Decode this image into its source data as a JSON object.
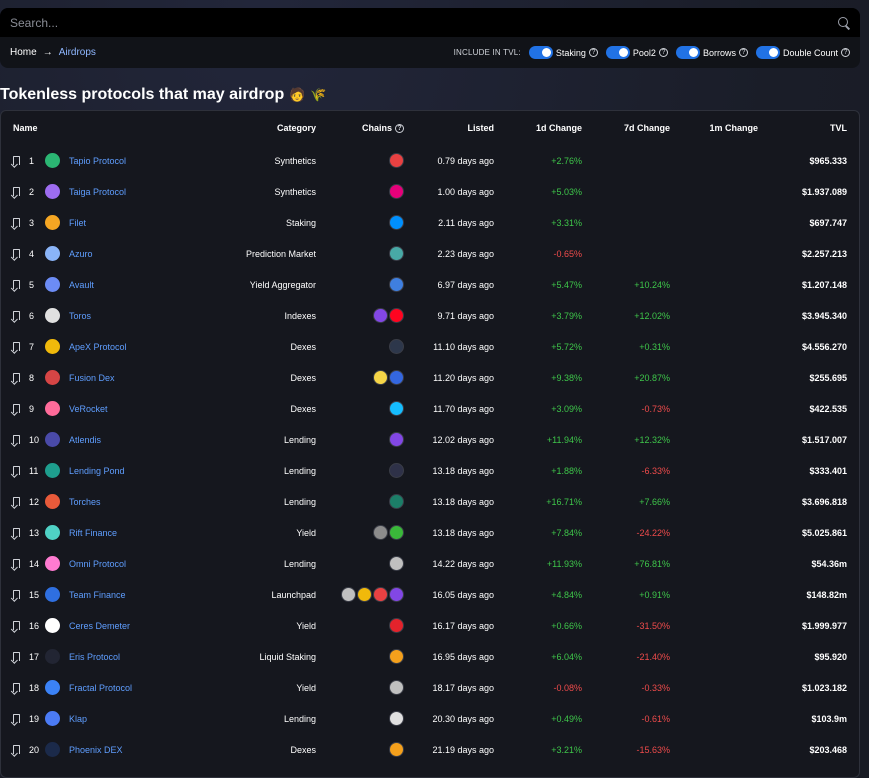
{
  "search": {
    "placeholder": "Search..."
  },
  "breadcrumb": {
    "home": "Home",
    "separator": "→",
    "current": "Airdrops"
  },
  "tvl_options": {
    "label": "INCLUDE IN TVL:",
    "toggles": [
      {
        "label": "Staking",
        "on": true
      },
      {
        "label": "Pool2",
        "on": true
      },
      {
        "label": "Borrows",
        "on": true
      },
      {
        "label": "Double Count",
        "on": true
      }
    ]
  },
  "page": {
    "title": "Tokenless protocols that may airdrop",
    "emoji1": "🧑",
    "emoji2": "🌾"
  },
  "table": {
    "headers": {
      "name": "Name",
      "category": "Category",
      "chains": "Chains",
      "listed": "Listed",
      "d1": "1d Change",
      "d7": "7d Change",
      "m1": "1m Change",
      "tvl": "TVL"
    },
    "rows": [
      {
        "rank": "1",
        "name": "Tapio Protocol",
        "logo": "#2bb673",
        "category": "Synthetics",
        "chains": [
          "#e84142"
        ],
        "listed": "0.79 days ago",
        "d1": "+2.76%",
        "d7": "",
        "m1": "",
        "tvl": "$965.333"
      },
      {
        "rank": "2",
        "name": "Taiga Protocol",
        "logo": "#9d6cf0",
        "category": "Synthetics",
        "chains": [
          "#e6007a"
        ],
        "listed": "1.00 days ago",
        "d1": "+5.03%",
        "d7": "",
        "m1": "",
        "tvl": "$1.937.089"
      },
      {
        "rank": "3",
        "name": "Filet",
        "logo": "#f5a623",
        "category": "Staking",
        "chains": [
          "#0090ff"
        ],
        "listed": "2.11 days ago",
        "d1": "+3.31%",
        "d7": "",
        "m1": "",
        "tvl": "$697.747"
      },
      {
        "rank": "4",
        "name": "Azuro",
        "logo": "#8ab4f8",
        "category": "Prediction Market",
        "chains": [
          "#48a9a6"
        ],
        "listed": "2.23 days ago",
        "d1": "-0.65%",
        "d7": "",
        "m1": "",
        "tvl": "$2.257.213"
      },
      {
        "rank": "5",
        "name": "Avault",
        "logo": "#6c8cf5",
        "category": "Yield Aggregator",
        "chains": [
          "#3f7fe0"
        ],
        "listed": "6.97 days ago",
        "d1": "+5.47%",
        "d7": "+10.24%",
        "m1": "",
        "tvl": "$1.207.148"
      },
      {
        "rank": "6",
        "name": "Toros",
        "logo": "#e0e0e0",
        "category": "Indexes",
        "chains": [
          "#8247e5",
          "#ff0420"
        ],
        "listed": "9.71 days ago",
        "d1": "+3.79%",
        "d7": "+12.02%",
        "m1": "",
        "tvl": "$3.945.340"
      },
      {
        "rank": "7",
        "name": "ApeX Protocol",
        "logo": "#f0b90b",
        "category": "Dexes",
        "chains": [
          "#2d374b"
        ],
        "listed": "11.10 days ago",
        "d1": "+5.72%",
        "d7": "+0.31%",
        "m1": "",
        "tvl": "$4.556.270"
      },
      {
        "rank": "8",
        "name": "Fusion Dex",
        "logo": "#d64545",
        "category": "Dexes",
        "chains": [
          "#f5d547",
          "#3467e0"
        ],
        "listed": "11.20 days ago",
        "d1": "+9.38%",
        "d7": "+20.87%",
        "m1": "",
        "tvl": "$255.695"
      },
      {
        "rank": "9",
        "name": "VeRocket",
        "logo": "#ff6b9a",
        "category": "Dexes",
        "chains": [
          "#15bdff"
        ],
        "listed": "11.70 days ago",
        "d1": "+3.09%",
        "d7": "-0.73%",
        "m1": "",
        "tvl": "$422.535"
      },
      {
        "rank": "10",
        "name": "Atlendis",
        "logo": "#4a4aa8",
        "category": "Lending",
        "chains": [
          "#8247e5"
        ],
        "listed": "12.02 days ago",
        "d1": "+11.94%",
        "d7": "+12.32%",
        "m1": "",
        "tvl": "$1.517.007"
      },
      {
        "rank": "11",
        "name": "Lending Pond",
        "logo": "#1e9e8e",
        "category": "Lending",
        "chains": [
          "#2e3148"
        ],
        "listed": "13.18 days ago",
        "d1": "+1.88%",
        "d7": "-6.33%",
        "m1": "",
        "tvl": "$333.401"
      },
      {
        "rank": "12",
        "name": "Torches",
        "logo": "#e85a3a",
        "category": "Lending",
        "chains": [
          "#1c7e68"
        ],
        "listed": "13.18 days ago",
        "d1": "+16.71%",
        "d7": "+7.66%",
        "m1": "",
        "tvl": "$3.696.818"
      },
      {
        "rank": "13",
        "name": "Rift Finance",
        "logo": "#4fd1c5",
        "category": "Yield",
        "chains": [
          "#8c8c8c",
          "#3ab83a"
        ],
        "listed": "13.18 days ago",
        "d1": "+7.84%",
        "d7": "-24.22%",
        "m1": "",
        "tvl": "$5.025.861"
      },
      {
        "rank": "14",
        "name": "Omni Protocol",
        "logo": "#ff7bd1",
        "category": "Lending",
        "chains": [
          "#c0c0c0"
        ],
        "listed": "14.22 days ago",
        "d1": "+11.93%",
        "d7": "+76.81%",
        "m1": "",
        "tvl": "$54.36m"
      },
      {
        "rank": "15",
        "name": "Team Finance",
        "logo": "#2f6fe0",
        "category": "Launchpad",
        "chains": [
          "#c0c0c0",
          "#f0b90b",
          "#e84142",
          "#8247e5"
        ],
        "listed": "16.05 days ago",
        "d1": "+4.84%",
        "d7": "+0.91%",
        "m1": "",
        "tvl": "$148.82m"
      },
      {
        "rank": "16",
        "name": "Ceres Demeter",
        "logo": "#ffffff",
        "category": "Yield",
        "chains": [
          "#e3232c"
        ],
        "listed": "16.17 days ago",
        "d1": "+0.66%",
        "d7": "-31.50%",
        "m1": "",
        "tvl": "$1.999.977"
      },
      {
        "rank": "17",
        "name": "Eris Protocol",
        "logo": "#222533",
        "category": "Liquid Staking",
        "chains": [
          "#f4a01c"
        ],
        "listed": "16.95 days ago",
        "d1": "+6.04%",
        "d7": "-21.40%",
        "m1": "",
        "tvl": "$95.920"
      },
      {
        "rank": "18",
        "name": "Fractal Protocol",
        "logo": "#3b82f6",
        "category": "Yield",
        "chains": [
          "#c0c0c0"
        ],
        "listed": "18.17 days ago",
        "d1": "-0.08%",
        "d7": "-0.33%",
        "m1": "",
        "tvl": "$1.023.182"
      },
      {
        "rank": "19",
        "name": "Klap",
        "logo": "#4b7bf5",
        "category": "Lending",
        "chains": [
          "#e0e0e0"
        ],
        "listed": "20.30 days ago",
        "d1": "+0.49%",
        "d7": "-0.61%",
        "m1": "",
        "tvl": "$103.9m"
      },
      {
        "rank": "20",
        "name": "Phoenix DEX",
        "logo": "#1b2a4a",
        "category": "Dexes",
        "chains": [
          "#f4a01c"
        ],
        "listed": "21.19 days ago",
        "d1": "+3.21%",
        "d7": "-15.63%",
        "m1": "",
        "tvl": "$203.468"
      }
    ]
  }
}
